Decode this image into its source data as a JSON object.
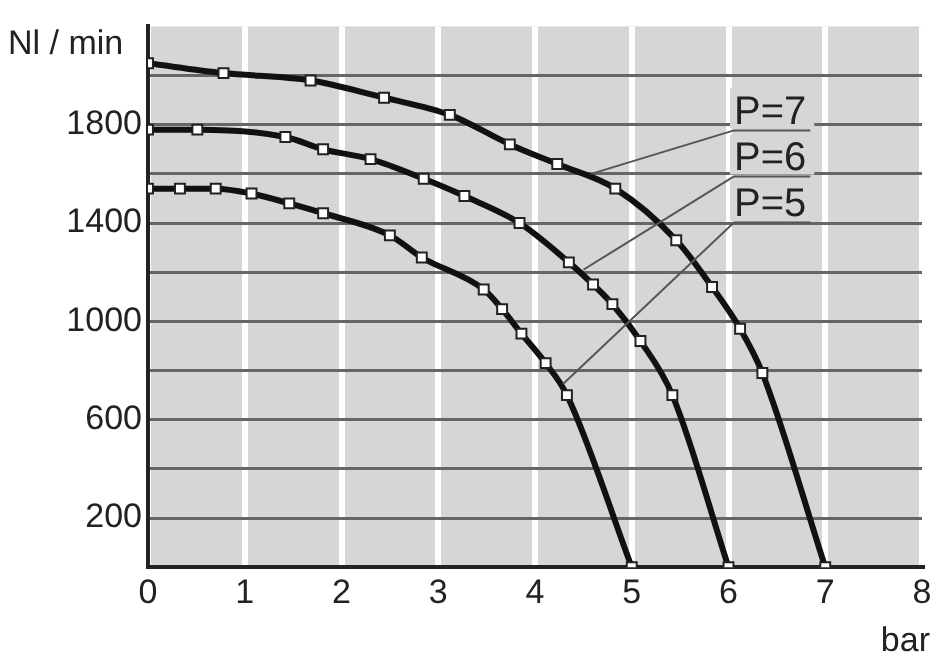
{
  "chart_data": {
    "type": "line",
    "xlabel": "bar",
    "ylabel": "Nl / min",
    "xlim": [
      0,
      8
    ],
    "xticks": [
      0,
      1,
      2,
      3,
      4,
      5,
      6,
      7,
      8
    ],
    "ylim": [
      0,
      2200
    ],
    "yticks": [
      {
        "value": 0,
        "label": null
      },
      200,
      {
        "value": 400,
        "label": null
      },
      600,
      {
        "value": 800,
        "label": null
      },
      1000,
      {
        "value": 1200,
        "label": null
      },
      1400,
      {
        "value": 1600,
        "label": null
      },
      1800,
      {
        "value": 2000,
        "label": null
      }
    ],
    "grid": true,
    "marker": "square",
    "line_style": "solid",
    "series": [
      {
        "color": "#111111",
        "x": [
          0,
          0.78,
          1.68,
          2.44,
          3.12,
          3.74,
          4.23,
          4.83,
          5.46,
          5.83,
          6.12,
          6.35,
          7
        ],
        "values": [
          2050,
          2010,
          1980,
          1910,
          1840,
          1720,
          1640,
          1540,
          1330,
          1140,
          970,
          790,
          0
        ]
      },
      {
        "color": "#111111",
        "x": [
          0,
          0.51,
          1.42,
          1.81,
          2.3,
          2.85,
          3.27,
          3.84,
          4.35,
          4.6,
          4.8,
          5.09,
          5.42,
          6
        ],
        "values": [
          1780,
          1780,
          1750,
          1700,
          1660,
          1580,
          1510,
          1400,
          1240,
          1150,
          1070,
          920,
          700,
          0
        ]
      },
      {
        "color": "#111111",
        "x": [
          0,
          0.33,
          0.7,
          1.07,
          1.46,
          1.81,
          2.5,
          2.83,
          3.47,
          3.66,
          3.86,
          4.11,
          4.33,
          5
        ],
        "values": [
          1540,
          1540,
          1540,
          1520,
          1480,
          1440,
          1350,
          1260,
          1130,
          1050,
          950,
          830,
          700,
          0
        ]
      }
    ],
    "annotations": [
      {
        "text": "P=7",
        "x": 4.58,
        "y": 1600
      },
      {
        "text": "P=6",
        "x": 4.5,
        "y": 1210
      },
      {
        "text": "P=5",
        "x": 4.29,
        "y": 745
      }
    ]
  }
}
